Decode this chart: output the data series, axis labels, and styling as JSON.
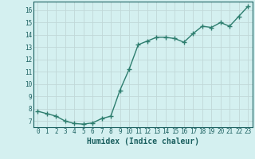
{
  "x": [
    0,
    1,
    2,
    3,
    4,
    5,
    6,
    7,
    8,
    9,
    10,
    11,
    12,
    13,
    14,
    15,
    16,
    17,
    18,
    19,
    20,
    21,
    22,
    23
  ],
  "y": [
    7.8,
    7.6,
    7.4,
    7.0,
    6.8,
    6.75,
    6.85,
    7.2,
    7.4,
    9.5,
    11.2,
    13.2,
    13.5,
    13.8,
    13.8,
    13.7,
    13.4,
    14.1,
    14.7,
    14.6,
    15.0,
    14.7,
    15.5,
    16.3
  ],
  "line_color": "#2d7d6e",
  "marker": "+",
  "marker_size": 4,
  "marker_linewidth": 1.0,
  "background_color": "#d4f0f0",
  "grid_color": "#c0d8d8",
  "xlabel": "Humidex (Indice chaleur)",
  "ylabel": "",
  "ylim": [
    6.5,
    16.7
  ],
  "xlim": [
    -0.5,
    23.5
  ],
  "yticks": [
    7,
    8,
    9,
    10,
    11,
    12,
    13,
    14,
    15,
    16
  ],
  "xticks": [
    0,
    1,
    2,
    3,
    4,
    5,
    6,
    7,
    8,
    9,
    10,
    11,
    12,
    13,
    14,
    15,
    16,
    17,
    18,
    19,
    20,
    21,
    22,
    23
  ],
  "tick_label_fontsize": 5.5,
  "xlabel_fontsize": 7.0,
  "line_width": 1.0
}
